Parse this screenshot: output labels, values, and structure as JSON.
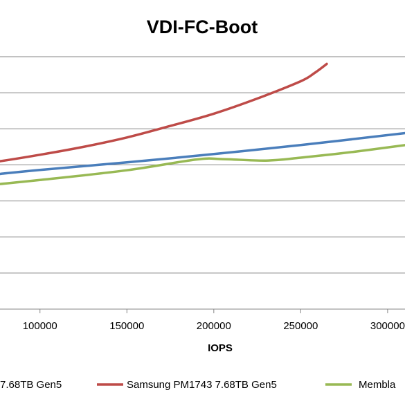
{
  "chart_data": {
    "type": "line",
    "title": "VDI-FC-Boot",
    "xlabel": "IOPS",
    "ylabel": "",
    "xlim": [
      77000,
      310000
    ],
    "ylim": [
      0.0,
      7.0
    ],
    "x_ticks": [
      100000,
      150000,
      200000,
      250000,
      300000
    ],
    "x_tick_labels": [
      "100000",
      "150000",
      "200000",
      "250000",
      "300000"
    ],
    "y_gridlines": [
      0,
      1,
      2,
      3,
      4,
      5,
      6,
      7
    ],
    "grid": "horizontal",
    "legend_position": "bottom",
    "series": [
      {
        "name": "7.68TB Gen5",
        "color": "#4a7ebb",
        "x": [
          77000,
          100000,
          150000,
          200000,
          250000,
          310000
        ],
        "y": [
          3.75,
          3.86,
          4.07,
          4.3,
          4.55,
          4.88
        ]
      },
      {
        "name": "Samsung PM1743 7.68TB Gen5",
        "color": "#be4b48",
        "x": [
          77000,
          100000,
          125000,
          150000,
          175000,
          200000,
          225000,
          250000,
          258000,
          265000
        ],
        "y": [
          4.1,
          4.28,
          4.5,
          4.76,
          5.08,
          5.42,
          5.84,
          6.32,
          6.55,
          6.8
        ]
      },
      {
        "name": "Membla",
        "color": "#98b954",
        "x": [
          77000,
          100000,
          150000,
          190000,
          205000,
          230000,
          250000,
          280000,
          310000
        ],
        "y": [
          3.47,
          3.58,
          3.85,
          4.15,
          4.16,
          4.12,
          4.2,
          4.36,
          4.55
        ]
      }
    ]
  }
}
